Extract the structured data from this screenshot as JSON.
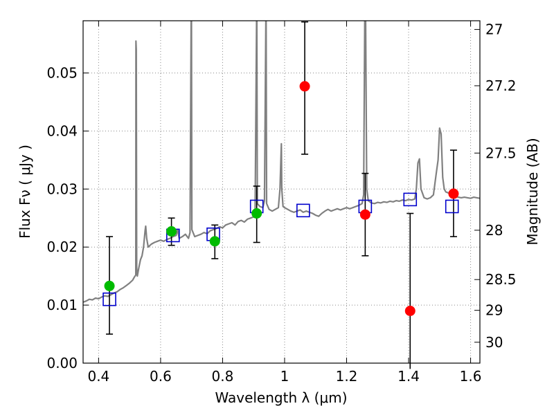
{
  "chart_data": {
    "type": "scatter",
    "xlabel": "Wavelength  λ (μm)",
    "ylabel": "Flux  Fν  ( μJy )",
    "y2label": "Magnitude (AB)",
    "xlim": [
      0.35,
      1.63
    ],
    "ylim": [
      0.0,
      0.059
    ],
    "grid": true,
    "x_ticks": [
      {
        "value": 0.4,
        "label": "0.4"
      },
      {
        "value": 0.6,
        "label": "0.6"
      },
      {
        "value": 0.8,
        "label": "0.8"
      },
      {
        "value": 1.0,
        "label": "1"
      },
      {
        "value": 1.2,
        "label": "1.2"
      },
      {
        "value": 1.4,
        "label": "1.4"
      },
      {
        "value": 1.6,
        "label": "1.6"
      }
    ],
    "y_ticks": [
      {
        "value": 0.0,
        "label": "0.00"
      },
      {
        "value": 0.01,
        "label": "0.01"
      },
      {
        "value": 0.02,
        "label": "0.02"
      },
      {
        "value": 0.03,
        "label": "0.03"
      },
      {
        "value": 0.04,
        "label": "0.04"
      },
      {
        "value": 0.05,
        "label": "0.05"
      }
    ],
    "y2_ticks": [
      {
        "label": "27",
        "flux": 0.0575
      },
      {
        "label": "27.2",
        "flux": 0.0478
      },
      {
        "label": "27.5",
        "flux": 0.0362
      },
      {
        "label": "28",
        "flux": 0.0229
      },
      {
        "label": "28.5",
        "flux": 0.0144
      },
      {
        "label": "29",
        "flux": 0.0091
      },
      {
        "label": "30",
        "flux": 0.0036
      }
    ],
    "colors": {
      "spectrum": "#808080",
      "detected": "#00bb00",
      "undetected": "#ff0000",
      "model": "#0000cc",
      "errorbar": "#000000",
      "grid": "#888888"
    },
    "series": [
      {
        "kind": "spectrum",
        "points": [
          [
            0.35,
            0.0105
          ],
          [
            0.36,
            0.0107
          ],
          [
            0.37,
            0.011
          ],
          [
            0.38,
            0.0109
          ],
          [
            0.39,
            0.0112
          ],
          [
            0.4,
            0.0111
          ],
          [
            0.41,
            0.0114
          ],
          [
            0.42,
            0.0116
          ],
          [
            0.43,
            0.0115
          ],
          [
            0.44,
            0.0118
          ],
          [
            0.45,
            0.0121
          ],
          [
            0.46,
            0.0123
          ],
          [
            0.47,
            0.0127
          ],
          [
            0.48,
            0.013
          ],
          [
            0.49,
            0.0134
          ],
          [
            0.5,
            0.0138
          ],
          [
            0.51,
            0.0143
          ],
          [
            0.515,
            0.0148
          ],
          [
            0.52,
            0.0152
          ],
          [
            0.5205,
            0.0555
          ],
          [
            0.5215,
            0.054
          ],
          [
            0.523,
            0.0165
          ],
          [
            0.525,
            0.015
          ],
          [
            0.53,
            0.0165
          ],
          [
            0.535,
            0.0178
          ],
          [
            0.54,
            0.0185
          ],
          [
            0.545,
            0.02
          ],
          [
            0.55,
            0.0228
          ],
          [
            0.552,
            0.0236
          ],
          [
            0.555,
            0.0215
          ],
          [
            0.56,
            0.02
          ],
          [
            0.57,
            0.0205
          ],
          [
            0.58,
            0.0208
          ],
          [
            0.59,
            0.021
          ],
          [
            0.6,
            0.0212
          ],
          [
            0.61,
            0.021
          ],
          [
            0.62,
            0.0213
          ],
          [
            0.63,
            0.0215
          ],
          [
            0.64,
            0.0218
          ],
          [
            0.65,
            0.022
          ],
          [
            0.655,
            0.023
          ],
          [
            0.66,
            0.0215
          ],
          [
            0.67,
            0.0218
          ],
          [
            0.68,
            0.0222
          ],
          [
            0.69,
            0.0215
          ],
          [
            0.695,
            0.0225
          ],
          [
            0.6985,
            0.059
          ],
          [
            0.6995,
            0.059
          ],
          [
            0.701,
            0.023
          ],
          [
            0.71,
            0.0218
          ],
          [
            0.72,
            0.022
          ],
          [
            0.73,
            0.0222
          ],
          [
            0.74,
            0.0225
          ],
          [
            0.75,
            0.0223
          ],
          [
            0.76,
            0.0228
          ],
          [
            0.77,
            0.023
          ],
          [
            0.78,
            0.0232
          ],
          [
            0.79,
            0.0235
          ],
          [
            0.8,
            0.0233
          ],
          [
            0.81,
            0.0238
          ],
          [
            0.82,
            0.024
          ],
          [
            0.83,
            0.0242
          ],
          [
            0.84,
            0.0238
          ],
          [
            0.85,
            0.0244
          ],
          [
            0.86,
            0.0246
          ],
          [
            0.87,
            0.0243
          ],
          [
            0.88,
            0.0248
          ],
          [
            0.89,
            0.025
          ],
          [
            0.9,
            0.0252
          ],
          [
            0.905,
            0.0262
          ],
          [
            0.9095,
            0.059
          ],
          [
            0.9105,
            0.059
          ],
          [
            0.912,
            0.0275
          ],
          [
            0.92,
            0.027
          ],
          [
            0.93,
            0.0268
          ],
          [
            0.935,
            0.028
          ],
          [
            0.9395,
            0.059
          ],
          [
            0.9405,
            0.059
          ],
          [
            0.942,
            0.0275
          ],
          [
            0.95,
            0.0265
          ],
          [
            0.96,
            0.0262
          ],
          [
            0.97,
            0.0265
          ],
          [
            0.98,
            0.0268
          ],
          [
            0.985,
            0.03
          ],
          [
            0.9895,
            0.0378
          ],
          [
            0.991,
            0.03
          ],
          [
            0.995,
            0.027
          ],
          [
            1.0,
            0.0268
          ],
          [
            1.01,
            0.0265
          ],
          [
            1.02,
            0.0262
          ],
          [
            1.03,
            0.026
          ],
          [
            1.04,
            0.0262
          ],
          [
            1.05,
            0.0264
          ],
          [
            1.06,
            0.026
          ],
          [
            1.07,
            0.0262
          ],
          [
            1.08,
            0.026
          ],
          [
            1.09,
            0.0258
          ],
          [
            1.1,
            0.0255
          ],
          [
            1.11,
            0.0253
          ],
          [
            1.12,
            0.0258
          ],
          [
            1.13,
            0.0262
          ],
          [
            1.14,
            0.0265
          ],
          [
            1.15,
            0.0262
          ],
          [
            1.16,
            0.0264
          ],
          [
            1.17,
            0.0266
          ],
          [
            1.18,
            0.0264
          ],
          [
            1.19,
            0.0266
          ],
          [
            1.2,
            0.0268
          ],
          [
            1.21,
            0.0266
          ],
          [
            1.22,
            0.0268
          ],
          [
            1.23,
            0.027
          ],
          [
            1.24,
            0.0272
          ],
          [
            1.25,
            0.0275
          ],
          [
            1.255,
            0.029
          ],
          [
            1.2585,
            0.059
          ],
          [
            1.2615,
            0.059
          ],
          [
            1.265,
            0.03
          ],
          [
            1.27,
            0.028
          ],
          [
            1.28,
            0.0276
          ],
          [
            1.29,
            0.0275
          ],
          [
            1.3,
            0.0277
          ],
          [
            1.31,
            0.0276
          ],
          [
            1.32,
            0.0278
          ],
          [
            1.33,
            0.0277
          ],
          [
            1.34,
            0.0279
          ],
          [
            1.35,
            0.0278
          ],
          [
            1.36,
            0.028
          ],
          [
            1.37,
            0.0279
          ],
          [
            1.38,
            0.0281
          ],
          [
            1.39,
            0.028
          ],
          [
            1.4,
            0.0282
          ],
          [
            1.41,
            0.0281
          ],
          [
            1.42,
            0.0283
          ],
          [
            1.425,
            0.03
          ],
          [
            1.43,
            0.0345
          ],
          [
            1.435,
            0.0352
          ],
          [
            1.44,
            0.03
          ],
          [
            1.45,
            0.0285
          ],
          [
            1.46,
            0.0283
          ],
          [
            1.47,
            0.0285
          ],
          [
            1.48,
            0.029
          ],
          [
            1.485,
            0.031
          ],
          [
            1.49,
            0.033
          ],
          [
            1.495,
            0.035
          ],
          [
            1.5,
            0.0405
          ],
          [
            1.505,
            0.0395
          ],
          [
            1.51,
            0.032
          ],
          [
            1.515,
            0.03
          ],
          [
            1.52,
            0.0295
          ],
          [
            1.53,
            0.0293
          ],
          [
            1.54,
            0.029
          ],
          [
            1.55,
            0.0288
          ],
          [
            1.56,
            0.0286
          ],
          [
            1.57,
            0.0285
          ],
          [
            1.58,
            0.0286
          ],
          [
            1.59,
            0.0285
          ],
          [
            1.6,
            0.0284
          ],
          [
            1.61,
            0.0286
          ],
          [
            1.62,
            0.0285
          ],
          [
            1.63,
            0.0284
          ]
        ]
      },
      {
        "kind": "detected",
        "points": [
          {
            "x": 0.435,
            "y": 0.0133,
            "yerr_low": 0.005,
            "yerr_high": 0.0218
          },
          {
            "x": 0.635,
            "y": 0.0227,
            "yerr_low": 0.0203,
            "yerr_high": 0.025
          },
          {
            "x": 0.775,
            "y": 0.021,
            "yerr_low": 0.018,
            "yerr_high": 0.0238
          },
          {
            "x": 0.91,
            "y": 0.0258,
            "yerr_low": 0.0208,
            "yerr_high": 0.0305
          }
        ]
      },
      {
        "kind": "undetected",
        "points": [
          {
            "x": 1.065,
            "y": 0.0477,
            "yerr_low": 0.036,
            "yerr_high": 0.0588
          },
          {
            "x": 1.26,
            "y": 0.0256,
            "yerr_low": 0.0185,
            "yerr_high": 0.0327
          },
          {
            "x": 1.405,
            "y": 0.009,
            "yerr_low": -0.001,
            "yerr_high": 0.0258
          },
          {
            "x": 1.545,
            "y": 0.0292,
            "yerr_low": 0.0218,
            "yerr_high": 0.0367
          }
        ]
      },
      {
        "kind": "model",
        "points": [
          {
            "x": 0.435,
            "y": 0.011
          },
          {
            "x": 0.64,
            "y": 0.022
          },
          {
            "x": 0.77,
            "y": 0.0222
          },
          {
            "x": 0.91,
            "y": 0.027
          },
          {
            "x": 1.06,
            "y": 0.0263
          },
          {
            "x": 1.26,
            "y": 0.027
          },
          {
            "x": 1.405,
            "y": 0.0282
          },
          {
            "x": 1.54,
            "y": 0.027
          }
        ]
      }
    ]
  }
}
